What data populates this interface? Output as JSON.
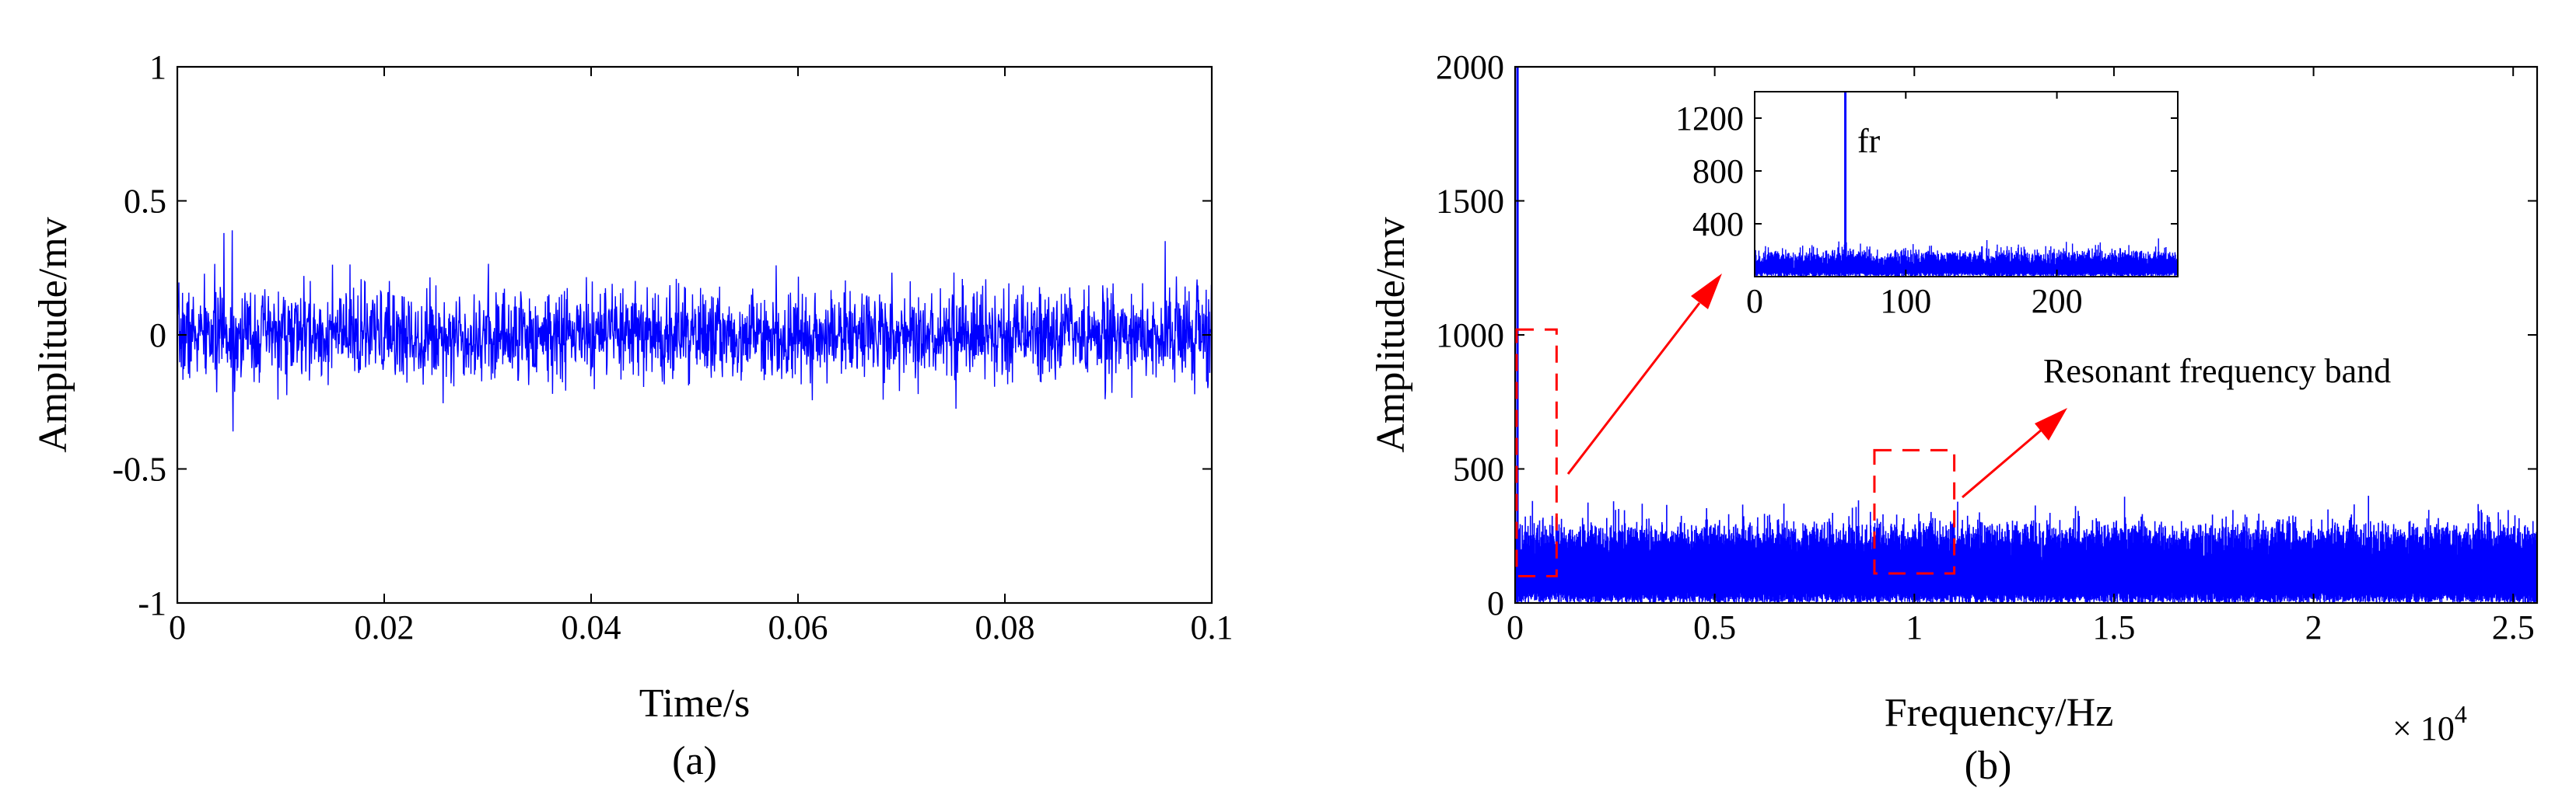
{
  "chart_data": [
    {
      "type": "line",
      "caption": "(a)",
      "xlabel": "Time/s",
      "ylabel": "Amplitude/mv",
      "xlim": [
        0,
        0.1
      ],
      "ylim": [
        -1,
        1
      ],
      "xticks": [
        0,
        0.02,
        0.04,
        0.06,
        0.08,
        0.1
      ],
      "xtick_labels": [
        "0",
        "0.02",
        "0.04",
        "0.06",
        "0.08",
        "0.1"
      ],
      "yticks": [
        -1,
        -0.5,
        0,
        0.5,
        1
      ],
      "ytick_labels": [
        "-1",
        "-0.5",
        "0",
        "0.5",
        "1"
      ],
      "grid": false,
      "line_color": "#0000ff",
      "signal": {
        "description_values": "zero-mean random vibration signal",
        "x_range": [
          0,
          0.1
        ],
        "peak_positive": 0.39,
        "peak_negative": -0.36,
        "typical_band": [
          -0.2,
          0.2
        ],
        "seed": 7
      },
      "highlights": [
        {
          "x": 0.0053,
          "y": 0.39
        },
        {
          "x": 0.0054,
          "y": -0.36
        },
        {
          "x": 0.0045,
          "y": 0.38
        },
        {
          "x": 0.0955,
          "y": 0.35
        }
      ]
    },
    {
      "type": "line",
      "caption": "(b)",
      "xlabel": "Frequency/Hz",
      "ylabel": "Amplitude/mv",
      "x_multiplier": "× 10",
      "x_multiplier_exp": "4",
      "xlim": [
        0,
        2.56
      ],
      "ylim": [
        0,
        2000
      ],
      "xticks": [
        0,
        0.5,
        1,
        1.5,
        2,
        2.5
      ],
      "xtick_labels": [
        "0",
        "0.5",
        "1",
        "1.5",
        "2",
        "2.5"
      ],
      "yticks": [
        0,
        500,
        1000,
        1500,
        2000
      ],
      "ytick_labels": [
        "0",
        "500",
        "1000",
        "1500",
        "2000"
      ],
      "grid": false,
      "line_color": "#0000ff",
      "spectrum": {
        "noise_floor_typical": 230,
        "noise_peak": 400,
        "low_freq_spike": {
          "x": 0.006,
          "y": 2000
        },
        "seed": 11
      },
      "boxes": [
        {
          "label_ref": "low-frequency region",
          "x0": 0.0,
          "x1": 0.1,
          "y0": 100,
          "y1": 1020
        },
        {
          "label_ref": "Resonant frequency band",
          "x0": 0.9,
          "x1": 1.1,
          "y0": 110,
          "y1": 570
        }
      ],
      "annotation": "Resonant frequency band",
      "inset": {
        "xlim": [
          0,
          280
        ],
        "ylim": [
          0,
          1400
        ],
        "xticks": [
          0,
          100,
          200
        ],
        "xtick_labels": [
          "0",
          "100",
          "200"
        ],
        "yticks": [
          400,
          800,
          1200
        ],
        "ytick_labels": [
          "400",
          "800",
          "1200"
        ],
        "spike": {
          "x": 60,
          "y": 1400
        },
        "spike_label": "fr",
        "noise_floor_typical": 150,
        "noise_peak": 320,
        "seed": 23
      },
      "annotation_color": "#ff0000"
    }
  ]
}
